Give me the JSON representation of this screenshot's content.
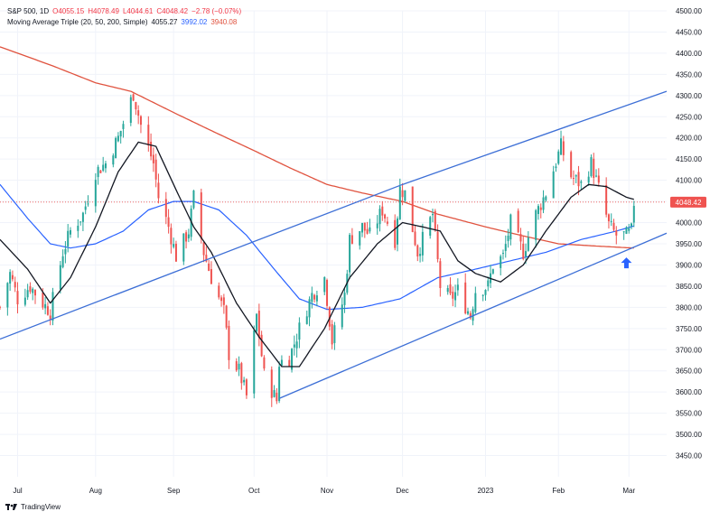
{
  "legend": {
    "symbol": "S&P 500, 1D",
    "open": "O4055.15",
    "high": "H4078.49",
    "low": "L4044.61",
    "close": "C4048.42",
    "change": "−2.78 (−0.07%)",
    "ma_label": "Moving Average Triple (20, 50, 200, Simple)",
    "ma20": "4055.27",
    "ma50": "3992.02",
    "ma200": "3940.08"
  },
  "brand": "TradingView",
  "last_price_label": "4048.42",
  "colors": {
    "up": "#26a69a",
    "down": "#ef5350",
    "ma20": "#131722",
    "ma50": "#2962ff",
    "ma200": "#e0533f",
    "trendline": "#3d6fd6",
    "price_tag": "#ef5350",
    "arrow": "#2962ff"
  },
  "icons": {
    "up_arrow": "arrow-up-icon"
  },
  "chart_data": {
    "type": "candlestick",
    "y_axis": {
      "position": "right",
      "ylim": [
        3400,
        4500
      ],
      "ticks": [
        3450,
        3500,
        3550,
        3600,
        3650,
        3700,
        3750,
        3800,
        3850,
        3900,
        3950,
        4000,
        4050,
        4100,
        4150,
        4200,
        4250,
        4300,
        4350,
        4400,
        4450,
        4500
      ]
    },
    "x_axis": {
      "xlim": [
        "2022-06-24",
        "2023-03-16"
      ],
      "ticks": [
        {
          "date": "2022-07-01",
          "label": "Jul"
        },
        {
          "date": "2022-08-01",
          "label": "Aug"
        },
        {
          "date": "2022-09-01",
          "label": "Sep"
        },
        {
          "date": "2022-10-03",
          "label": "Oct"
        },
        {
          "date": "2022-11-01",
          "label": "Nov"
        },
        {
          "date": "2022-12-01",
          "label": "Dec"
        },
        {
          "date": "2023-01-03",
          "label": "2023"
        },
        {
          "date": "2023-02-01",
          "label": "Feb"
        },
        {
          "date": "2023-03-01",
          "label": "Mar"
        }
      ]
    },
    "close_anchors": [
      [
        "2022-06-24",
        3800
      ],
      [
        "2022-06-28",
        3880
      ],
      [
        "2022-07-01",
        3820
      ],
      [
        "2022-07-06",
        3850
      ],
      [
        "2022-07-11",
        3810
      ],
      [
        "2022-07-14",
        3790
      ],
      [
        "2022-07-19",
        3930
      ],
      [
        "2022-07-22",
        3980
      ],
      [
        "2022-07-27",
        4020
      ],
      [
        "2022-08-01",
        4120
      ],
      [
        "2022-08-05",
        4140
      ],
      [
        "2022-08-10",
        4200
      ],
      [
        "2022-08-16",
        4305
      ],
      [
        "2022-08-19",
        4230
      ],
      [
        "2022-08-24",
        4140
      ],
      [
        "2022-08-26",
        4060
      ],
      [
        "2022-08-30",
        3990
      ],
      [
        "2022-09-02",
        3920
      ],
      [
        "2022-09-07",
        3980
      ],
      [
        "2022-09-09",
        4060
      ],
      [
        "2022-09-13",
        3930
      ],
      [
        "2022-09-16",
        3870
      ],
      [
        "2022-09-21",
        3790
      ],
      [
        "2022-09-23",
        3690
      ],
      [
        "2022-09-27",
        3650
      ],
      [
        "2022-09-30",
        3590
      ],
      [
        "2022-10-04",
        3780
      ],
      [
        "2022-10-07",
        3640
      ],
      [
        "2022-10-12",
        3580
      ],
      [
        "2022-10-13",
        3670
      ],
      [
        "2022-10-17",
        3680
      ],
      [
        "2022-10-21",
        3750
      ],
      [
        "2022-10-26",
        3830
      ],
      [
        "2022-10-31",
        3870
      ],
      [
        "2022-11-03",
        3720
      ],
      [
        "2022-11-08",
        3830
      ],
      [
        "2022-11-10",
        3960
      ],
      [
        "2022-11-15",
        3990
      ],
      [
        "2022-11-18",
        3970
      ],
      [
        "2022-11-23",
        4030
      ],
      [
        "2022-11-28",
        3960
      ],
      [
        "2022-11-30",
        4080
      ],
      [
        "2022-12-02",
        4070
      ],
      [
        "2022-12-07",
        3930
      ],
      [
        "2022-12-13",
        4020
      ],
      [
        "2022-12-16",
        3850
      ],
      [
        "2022-12-20",
        3820
      ],
      [
        "2022-12-23",
        3840
      ],
      [
        "2022-12-28",
        3780
      ],
      [
        "2022-12-30",
        3840
      ],
      [
        "2023-01-04",
        3850
      ],
      [
        "2023-01-06",
        3900
      ],
      [
        "2023-01-10",
        3920
      ],
      [
        "2023-01-13",
        4000
      ],
      [
        "2023-01-18",
        3930
      ],
      [
        "2023-01-23",
        4020
      ],
      [
        "2023-01-27",
        4070
      ],
      [
        "2023-02-02",
        4180
      ],
      [
        "2023-02-06",
        4110
      ],
      [
        "2023-02-10",
        4090
      ],
      [
        "2023-02-14",
        4140
      ],
      [
        "2023-02-17",
        4080
      ],
      [
        "2023-02-21",
        3995
      ],
      [
        "2023-02-24",
        3970
      ],
      [
        "2023-02-28",
        3970
      ],
      [
        "2023-03-02",
        3980
      ],
      [
        "2023-03-03",
        4048
      ]
    ],
    "ma20_anchors": [
      [
        "2022-06-24",
        3960
      ],
      [
        "2022-07-05",
        3890
      ],
      [
        "2022-07-14",
        3810
      ],
      [
        "2022-07-22",
        3870
      ],
      [
        "2022-08-01",
        3990
      ],
      [
        "2022-08-10",
        4120
      ],
      [
        "2022-08-18",
        4190
      ],
      [
        "2022-08-25",
        4180
      ],
      [
        "2022-09-01",
        4090
      ],
      [
        "2022-09-09",
        3990
      ],
      [
        "2022-09-16",
        3930
      ],
      [
        "2022-09-26",
        3810
      ],
      [
        "2022-10-05",
        3730
      ],
      [
        "2022-10-14",
        3660
      ],
      [
        "2022-10-21",
        3660
      ],
      [
        "2022-10-31",
        3750
      ],
      [
        "2022-11-10",
        3870
      ],
      [
        "2022-11-21",
        3950
      ],
      [
        "2022-12-01",
        4000
      ],
      [
        "2022-12-09",
        3990
      ],
      [
        "2022-12-16",
        3980
      ],
      [
        "2022-12-23",
        3910
      ],
      [
        "2022-12-30",
        3880
      ],
      [
        "2023-01-09",
        3860
      ],
      [
        "2023-01-18",
        3900
      ],
      [
        "2023-01-27",
        3980
      ],
      [
        "2023-02-06",
        4060
      ],
      [
        "2023-02-13",
        4090
      ],
      [
        "2023-02-20",
        4085
      ],
      [
        "2023-02-28",
        4060
      ],
      [
        "2023-03-03",
        4055
      ]
    ],
    "ma50_anchors": [
      [
        "2022-06-24",
        4090
      ],
      [
        "2022-07-05",
        4010
      ],
      [
        "2022-07-14",
        3950
      ],
      [
        "2022-07-22",
        3940
      ],
      [
        "2022-08-01",
        3950
      ],
      [
        "2022-08-12",
        3980
      ],
      [
        "2022-08-22",
        4030
      ],
      [
        "2022-09-01",
        4050
      ],
      [
        "2022-09-09",
        4050
      ],
      [
        "2022-09-19",
        4030
      ],
      [
        "2022-09-30",
        3970
      ],
      [
        "2022-10-11",
        3890
      ],
      [
        "2022-10-21",
        3820
      ],
      [
        "2022-11-01",
        3795
      ],
      [
        "2022-11-15",
        3800
      ],
      [
        "2022-11-30",
        3820
      ],
      [
        "2022-12-15",
        3870
      ],
      [
        "2022-12-30",
        3890
      ],
      [
        "2023-01-13",
        3910
      ],
      [
        "2023-01-27",
        3930
      ],
      [
        "2023-02-10",
        3960
      ],
      [
        "2023-02-24",
        3980
      ],
      [
        "2023-03-03",
        3992
      ]
    ],
    "ma200_anchors": [
      [
        "2022-06-24",
        4415
      ],
      [
        "2022-07-15",
        4370
      ],
      [
        "2022-08-01",
        4330
      ],
      [
        "2022-08-15",
        4310
      ],
      [
        "2022-09-01",
        4260
      ],
      [
        "2022-09-15",
        4220
      ],
      [
        "2022-10-03",
        4170
      ],
      [
        "2022-10-17",
        4130
      ],
      [
        "2022-11-01",
        4090
      ],
      [
        "2022-11-15",
        4070
      ],
      [
        "2022-12-01",
        4050
      ],
      [
        "2022-12-15",
        4020
      ],
      [
        "2023-01-03",
        3990
      ],
      [
        "2023-01-17",
        3970
      ],
      [
        "2023-02-01",
        3950
      ],
      [
        "2023-02-15",
        3945
      ],
      [
        "2023-03-03",
        3940
      ]
    ],
    "trendlines": [
      {
        "from": [
          "2022-06-24",
          3725
        ],
        "to": [
          "2022-12-01",
          4090
        ]
      },
      {
        "from": [
          "2022-12-01",
          4090
        ],
        "to": [
          "2023-03-16",
          4310
        ]
      },
      {
        "from": [
          "2022-10-13",
          3585
        ],
        "to": [
          "2023-03-16",
          3975
        ]
      }
    ],
    "horizontal_line": {
      "y": 4048.42,
      "style": "dotted"
    }
  }
}
